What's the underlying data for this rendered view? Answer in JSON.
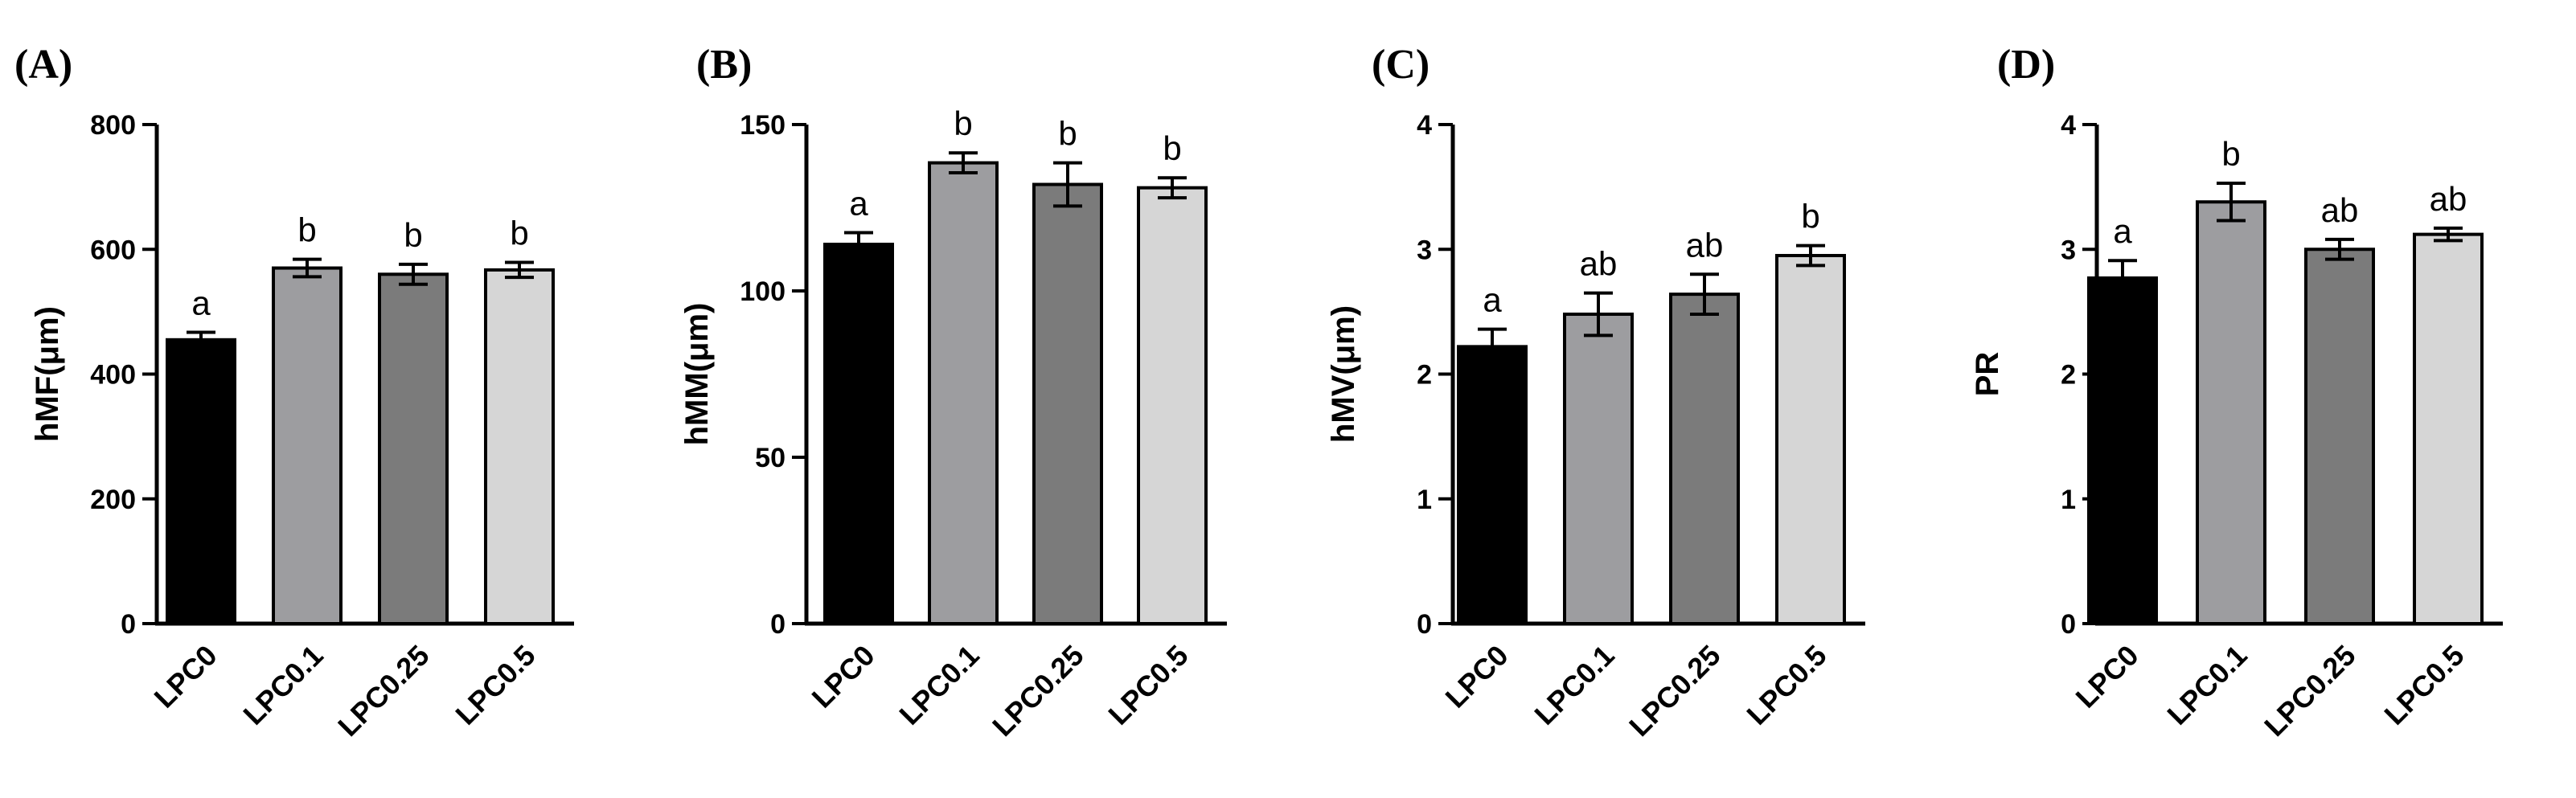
{
  "colors": {
    "LPC0": "#000000",
    "LPC0.1": "#9d9da0",
    "LPC0.25": "#7b7b7b",
    "LPC0.5": "#d6d6d6"
  },
  "chart_data": [
    {
      "type": "bar",
      "panel": "(A)",
      "ylabel": "hMF(μm)",
      "categories": [
        "LPC0",
        "LPC0.1",
        "LPC0.25",
        "LPC0.5"
      ],
      "values": [
        455,
        570,
        560,
        567
      ],
      "errors": [
        12,
        14,
        16,
        12
      ],
      "significance": [
        "a",
        "b",
        "b",
        "b"
      ],
      "ylim": [
        0,
        800
      ],
      "yticks": [
        0,
        200,
        400,
        600,
        800
      ]
    },
    {
      "type": "bar",
      "panel": "(B)",
      "ylabel": "hMM(μm)",
      "categories": [
        "LPC0",
        "LPC0.1",
        "LPC0.25",
        "LPC0.5"
      ],
      "values": [
        114,
        138.5,
        132,
        131
      ],
      "errors": [
        3.5,
        3,
        6.5,
        3
      ],
      "significance": [
        "a",
        "b",
        "b",
        "b"
      ],
      "ylim": [
        0,
        150
      ],
      "yticks": [
        0,
        50,
        100,
        150
      ]
    },
    {
      "type": "bar",
      "panel": "(C)",
      "ylabel": "hMV(μm)",
      "categories": [
        "LPC0",
        "LPC0.1",
        "LPC0.25",
        "LPC0.5"
      ],
      "values": [
        2.22,
        2.48,
        2.64,
        2.95
      ],
      "errors": [
        0.14,
        0.17,
        0.16,
        0.08
      ],
      "significance": [
        "a",
        "ab",
        "ab",
        "b"
      ],
      "ylim": [
        0,
        4
      ],
      "yticks": [
        0,
        1,
        2,
        3,
        4
      ]
    },
    {
      "type": "bar",
      "panel": "(D)",
      "ylabel": "PR",
      "categories": [
        "LPC0",
        "LPC0.1",
        "LPC0.25",
        "LPC0.5"
      ],
      "values": [
        2.77,
        3.38,
        3.0,
        3.12
      ],
      "errors": [
        0.14,
        0.15,
        0.08,
        0.05
      ],
      "significance": [
        "a",
        "b",
        "ab",
        "ab"
      ],
      "ylim": [
        0,
        4
      ],
      "yticks": [
        0,
        1,
        2,
        3,
        4
      ]
    }
  ]
}
